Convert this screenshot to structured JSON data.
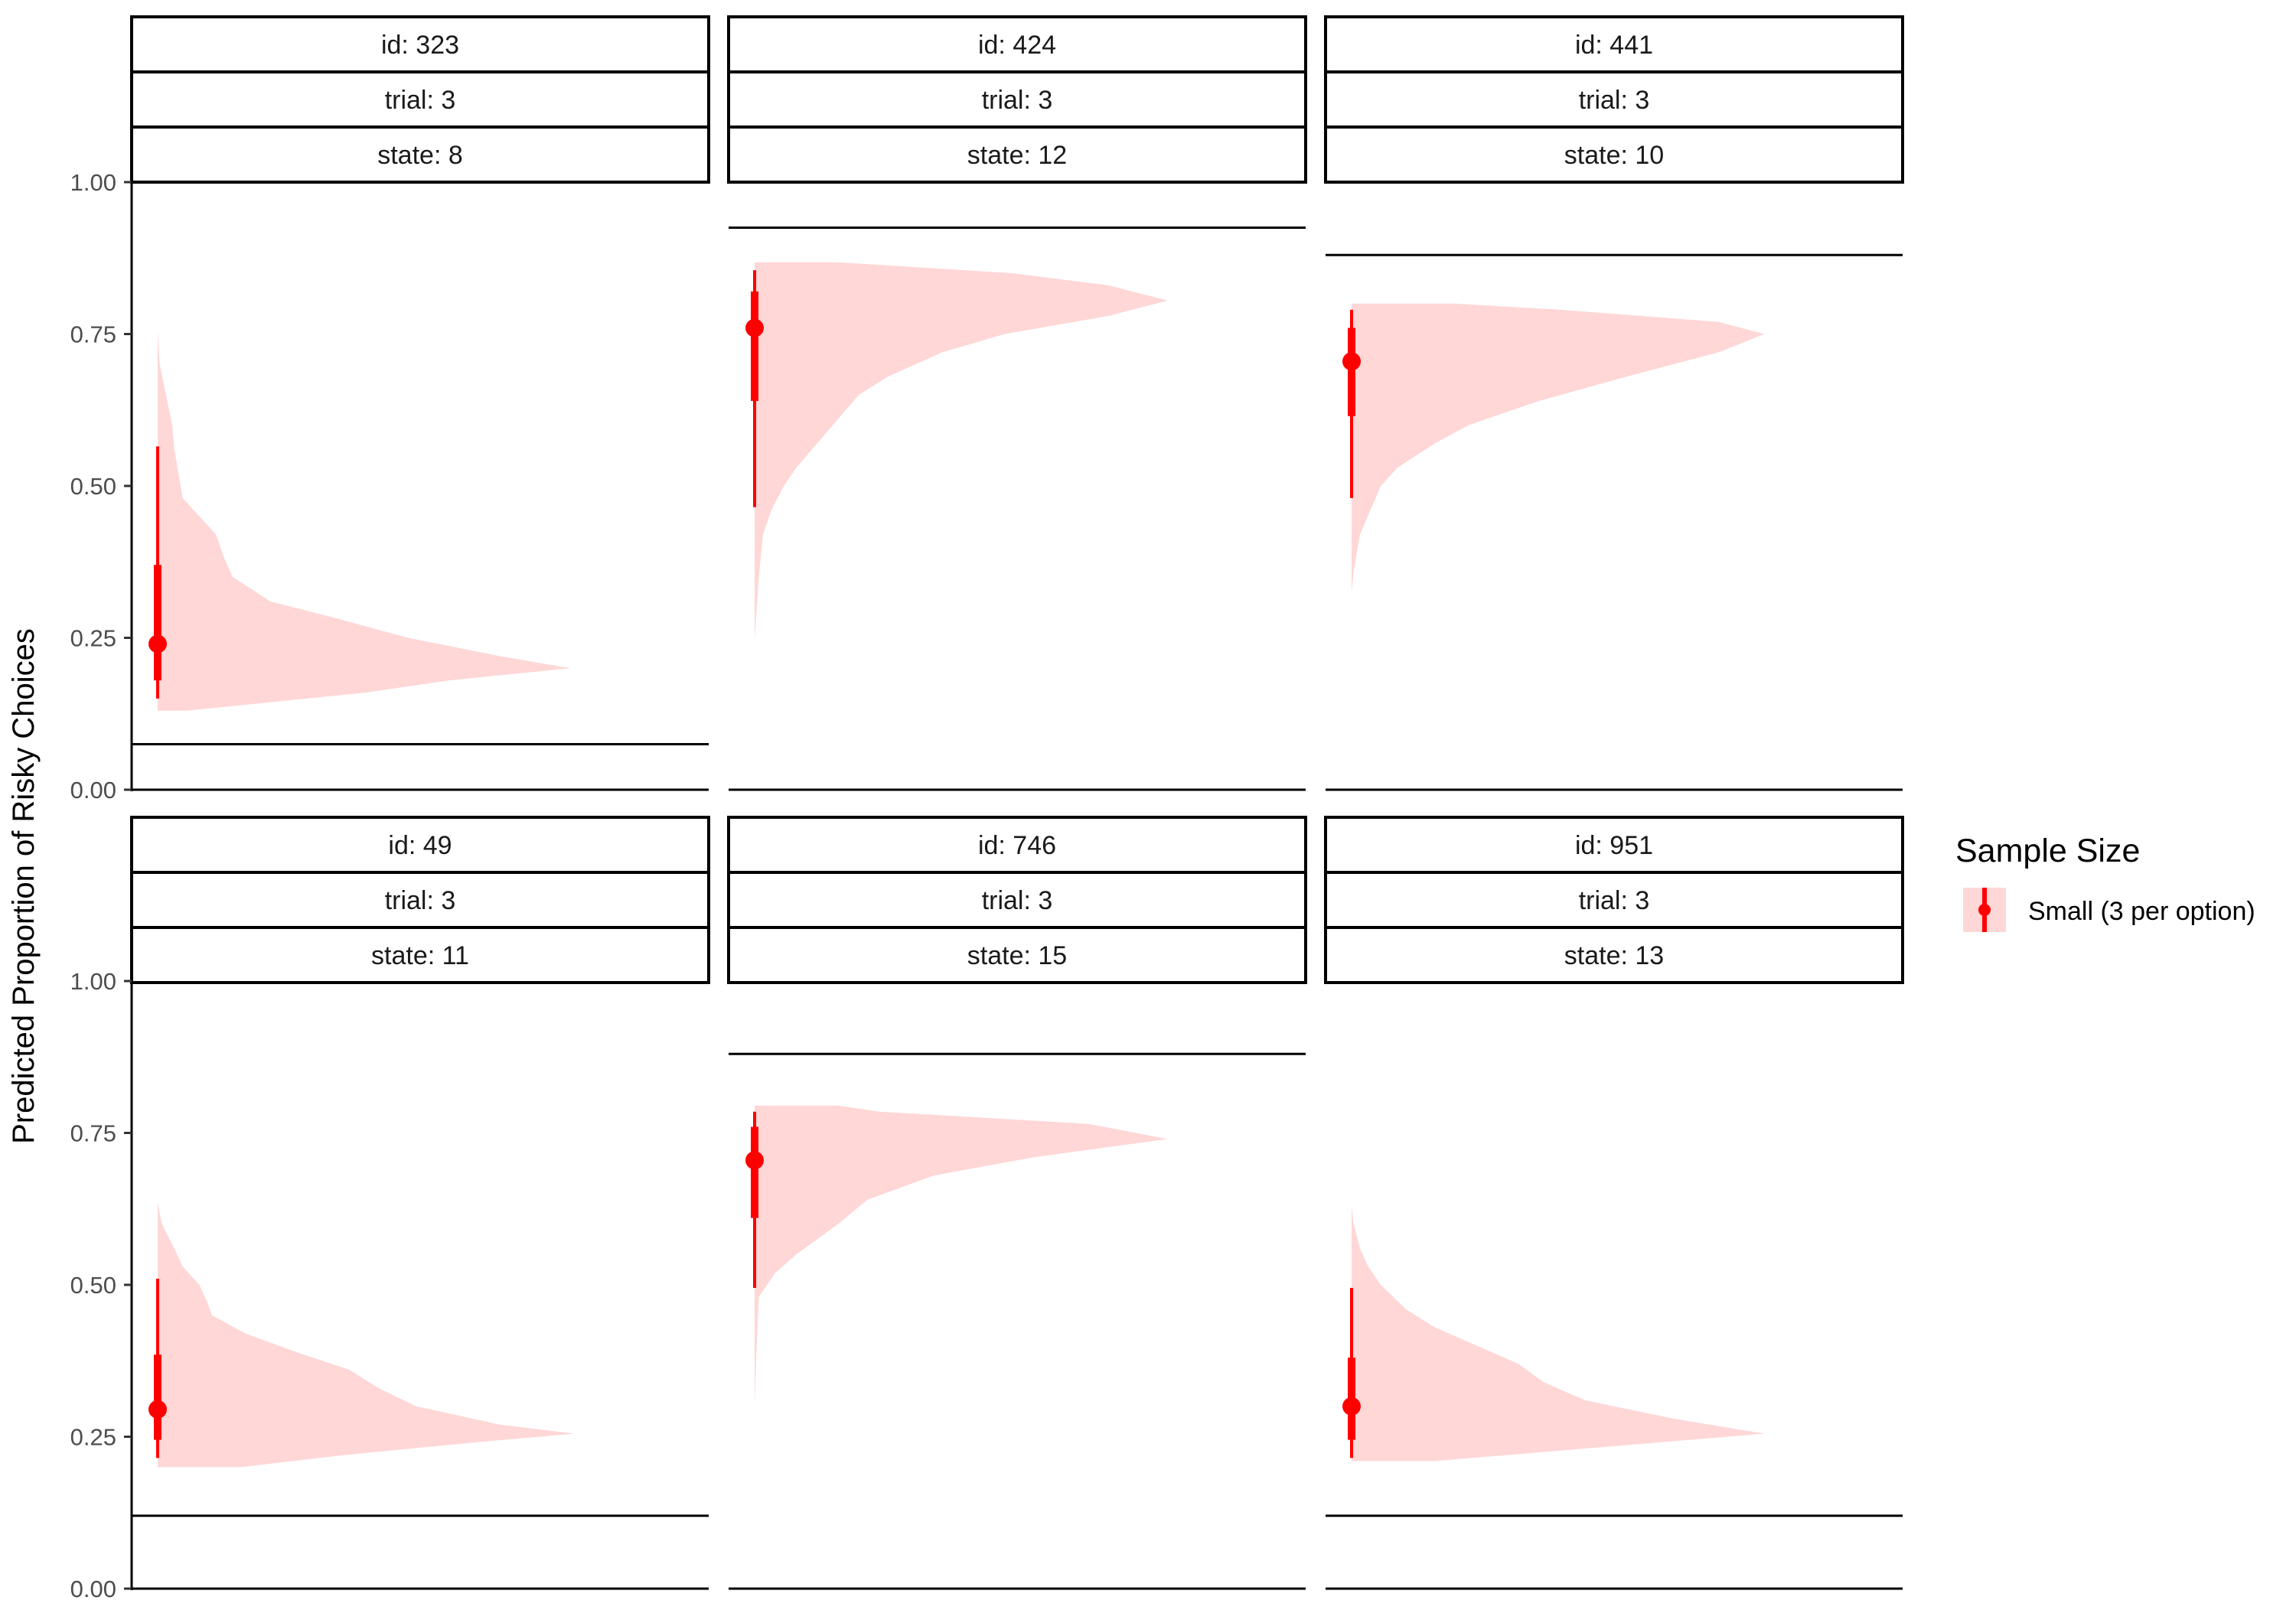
{
  "chart_data": {
    "type": "halfeye",
    "ylabel": "Predicted Proportion of Risky Choices",
    "ylim": [
      0,
      1
    ],
    "yticks": [
      0,
      0.25,
      0.5,
      0.75,
      1
    ],
    "ytick_labels": [
      "0.00",
      "0.25",
      "0.50",
      "0.75",
      "1.00"
    ],
    "facet_rows": 2,
    "facet_cols": 3,
    "colors": {
      "fill": "#ffd7d7",
      "point": "#ff0000"
    },
    "legend": {
      "title": "Sample Size",
      "label": "Small (3 per option)",
      "placement": "right"
    },
    "panels": [
      {
        "id": "id: 323",
        "trial": "trial: 3",
        "state": "state: 8",
        "hline": 0.075,
        "median": 0.24,
        "q66": [
          0.18,
          0.37
        ],
        "q95": [
          0.15,
          0.565
        ],
        "density": [
          [
            0.13,
            0.07
          ],
          [
            0.16,
            0.5
          ],
          [
            0.18,
            0.7
          ],
          [
            0.2,
            0.99
          ],
          [
            0.22,
            0.82
          ],
          [
            0.25,
            0.6
          ],
          [
            0.28,
            0.44
          ],
          [
            0.31,
            0.27
          ],
          [
            0.35,
            0.18
          ],
          [
            0.38,
            0.16
          ],
          [
            0.42,
            0.14
          ],
          [
            0.45,
            0.1
          ],
          [
            0.48,
            0.06
          ],
          [
            0.52,
            0.05
          ],
          [
            0.56,
            0.04
          ],
          [
            0.6,
            0.035
          ],
          [
            0.65,
            0.02
          ],
          [
            0.7,
            0.005
          ],
          [
            0.755,
            0.0
          ]
        ]
      },
      {
        "id": "id: 424",
        "trial": "trial: 3",
        "state": "state: 12",
        "hline": 0.925,
        "median": 0.76,
        "q66": [
          0.64,
          0.82
        ],
        "q95": [
          0.465,
          0.855
        ],
        "density": [
          [
            0.245,
            0.0
          ],
          [
            0.3,
            0.005
          ],
          [
            0.35,
            0.01
          ],
          [
            0.42,
            0.02
          ],
          [
            0.46,
            0.04
          ],
          [
            0.5,
            0.07
          ],
          [
            0.53,
            0.1
          ],
          [
            0.57,
            0.15
          ],
          [
            0.61,
            0.2
          ],
          [
            0.65,
            0.25
          ],
          [
            0.68,
            0.32
          ],
          [
            0.72,
            0.45
          ],
          [
            0.75,
            0.6
          ],
          [
            0.78,
            0.85
          ],
          [
            0.805,
            0.99
          ],
          [
            0.83,
            0.85
          ],
          [
            0.85,
            0.62
          ],
          [
            0.868,
            0.2
          ]
        ]
      },
      {
        "id": "id: 441",
        "trial": "trial: 3",
        "state": "state: 10",
        "hline": 0.88,
        "median": 0.705,
        "q66": [
          0.615,
          0.76
        ],
        "q95": [
          0.48,
          0.79
        ],
        "density": [
          [
            0.325,
            0.0
          ],
          [
            0.36,
            0.005
          ],
          [
            0.42,
            0.02
          ],
          [
            0.46,
            0.045
          ],
          [
            0.5,
            0.07
          ],
          [
            0.53,
            0.11
          ],
          [
            0.57,
            0.2
          ],
          [
            0.6,
            0.28
          ],
          [
            0.64,
            0.45
          ],
          [
            0.68,
            0.66
          ],
          [
            0.72,
            0.88
          ],
          [
            0.75,
            0.99
          ],
          [
            0.77,
            0.88
          ],
          [
            0.79,
            0.5
          ],
          [
            0.8,
            0.25
          ]
        ]
      },
      {
        "id": "id: 49",
        "trial": "trial: 3",
        "state": "state: 11",
        "hline": 0.12,
        "median": 0.295,
        "q66": [
          0.245,
          0.385
        ],
        "q95": [
          0.215,
          0.51
        ],
        "density": [
          [
            0.2,
            0.2
          ],
          [
            0.22,
            0.45
          ],
          [
            0.24,
            0.75
          ],
          [
            0.255,
            1.0
          ],
          [
            0.27,
            0.82
          ],
          [
            0.3,
            0.62
          ],
          [
            0.33,
            0.53
          ],
          [
            0.36,
            0.46
          ],
          [
            0.39,
            0.33
          ],
          [
            0.42,
            0.21
          ],
          [
            0.45,
            0.13
          ],
          [
            0.47,
            0.12
          ],
          [
            0.5,
            0.1
          ],
          [
            0.53,
            0.06
          ],
          [
            0.56,
            0.04
          ],
          [
            0.6,
            0.01
          ],
          [
            0.635,
            0.0
          ]
        ]
      },
      {
        "id": "id: 746",
        "trial": "trial: 3",
        "state": "state: 15",
        "hline": 0.88,
        "median": 0.705,
        "q66": [
          0.61,
          0.76
        ],
        "q95": [
          0.495,
          0.785
        ],
        "density": [
          [
            0.155,
            0.0
          ],
          [
            0.3,
            0.0
          ],
          [
            0.4,
            0.005
          ],
          [
            0.48,
            0.01
          ],
          [
            0.52,
            0.05
          ],
          [
            0.55,
            0.1
          ],
          [
            0.6,
            0.2
          ],
          [
            0.64,
            0.27
          ],
          [
            0.68,
            0.43
          ],
          [
            0.71,
            0.67
          ],
          [
            0.74,
            0.99
          ],
          [
            0.765,
            0.8
          ],
          [
            0.785,
            0.3
          ],
          [
            0.795,
            0.2
          ]
        ]
      },
      {
        "id": "id: 951",
        "trial": "trial: 3",
        "state": "state: 13",
        "hline": 0.12,
        "median": 0.3,
        "q66": [
          0.245,
          0.38
        ],
        "q95": [
          0.215,
          0.495
        ],
        "density": [
          [
            0.21,
            0.2
          ],
          [
            0.23,
            0.55
          ],
          [
            0.255,
            0.99
          ],
          [
            0.28,
            0.77
          ],
          [
            0.31,
            0.56
          ],
          [
            0.34,
            0.46
          ],
          [
            0.37,
            0.4
          ],
          [
            0.4,
            0.3
          ],
          [
            0.43,
            0.2
          ],
          [
            0.46,
            0.13
          ],
          [
            0.5,
            0.07
          ],
          [
            0.53,
            0.04
          ],
          [
            0.56,
            0.02
          ],
          [
            0.6,
            0.005
          ],
          [
            0.63,
            0.0
          ]
        ]
      }
    ]
  }
}
